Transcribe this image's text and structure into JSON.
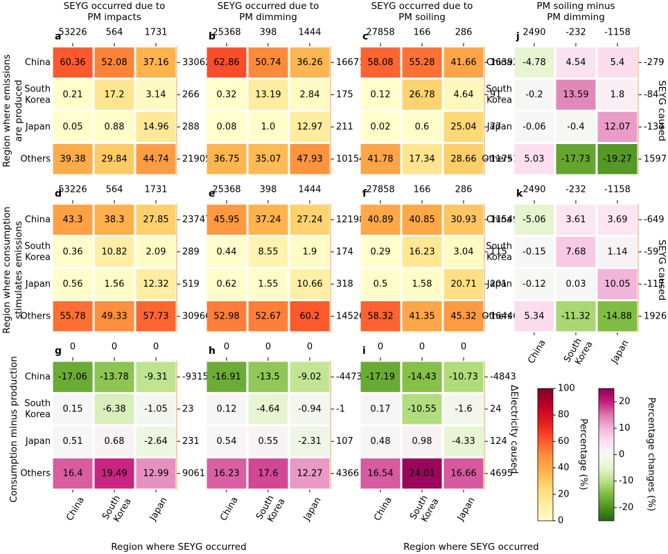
{
  "panel_titles": {
    "a": "SEYG occurred due to PM impacts",
    "b": "SEYG occurred due to PM dimming",
    "c": "SEYG occurred due to PM soiling",
    "j": "PM soiling minus PM dimming"
  },
  "row_labels": {
    "top": "Region where emissions are produced",
    "middle": "Region where consumption stimulates emissions",
    "bottom": "Consumption minus production"
  },
  "right_labels": {
    "top": "SEYG caused",
    "middle": "SEYG caused",
    "bottom": "ΔElectricity caused"
  },
  "x_axis_title": "Region where SEYG occurred",
  "colorbar_percent": {
    "label": "Percentage (%)",
    "ticks": [
      0,
      20,
      40,
      60,
      80,
      100
    ]
  },
  "colorbar_change": {
    "label": "Percentage changes (%)",
    "ticks": [
      -20,
      -10,
      0,
      10,
      20
    ]
  },
  "chart_data": {
    "type": "heatmap",
    "x_categories": [
      "China",
      "South Korea",
      "Japan"
    ],
    "y_categories": [
      "China",
      "South Korea",
      "Japan",
      "Others"
    ],
    "panels": [
      {
        "id": "a",
        "row": 0,
        "col": 0,
        "scale": "percent",
        "col_totals": [
          "53226",
          "564",
          "1731"
        ],
        "row_totals": [
          "33062",
          "266",
          "288",
          "21905"
        ],
        "values": [
          [
            60.36,
            52.08,
            37.16
          ],
          [
            0.21,
            17.2,
            3.14
          ],
          [
            0.05,
            0.88,
            14.96
          ],
          [
            39.38,
            29.84,
            44.74
          ]
        ]
      },
      {
        "id": "b",
        "row": 0,
        "col": 1,
        "scale": "percent",
        "col_totals": [
          "25368",
          "398",
          "1444"
        ],
        "row_totals": [
          "16671",
          "175",
          "211",
          "10154"
        ],
        "values": [
          [
            62.86,
            50.74,
            36.26
          ],
          [
            0.32,
            13.19,
            2.84
          ],
          [
            0.08,
            "1.0",
            12.97
          ],
          [
            36.75,
            35.07,
            47.93
          ]
        ]
      },
      {
        "id": "c",
        "row": 0,
        "col": 2,
        "scale": "percent",
        "col_totals": [
          "27858",
          "166",
          "286"
        ],
        "row_totals": [
          "16392",
          "91",
          "77",
          "11751"
        ],
        "values": [
          [
            58.08,
            55.28,
            41.66
          ],
          [
            0.12,
            26.78,
            4.64
          ],
          [
            0.02,
            0.6,
            25.04
          ],
          [
            41.78,
            17.34,
            28.66
          ]
        ]
      },
      {
        "id": "j",
        "row": 0,
        "col": 3,
        "scale": "change",
        "col_totals": [
          "2490",
          "-232",
          "-1158"
        ],
        "row_totals": [
          "-279",
          "-84",
          "-134",
          "1597"
        ],
        "values": [
          [
            -4.78,
            4.54,
            5.4
          ],
          [
            -0.2,
            13.59,
            1.8
          ],
          [
            -0.06,
            -0.4,
            12.07
          ],
          [
            5.03,
            -17.73,
            -19.27
          ]
        ]
      },
      {
        "id": "d",
        "row": 1,
        "col": 0,
        "scale": "percent",
        "col_totals": [
          "53226",
          "564",
          "1731"
        ],
        "row_totals": [
          "23747",
          "289",
          "519",
          "30966"
        ],
        "values": [
          [
            43.3,
            38.3,
            27.85
          ],
          [
            0.36,
            10.82,
            2.09
          ],
          [
            0.56,
            1.56,
            12.32
          ],
          [
            55.78,
            49.33,
            57.73
          ]
        ]
      },
      {
        "id": "e",
        "row": 1,
        "col": 1,
        "scale": "percent",
        "col_totals": [
          "25368",
          "398",
          "1444"
        ],
        "row_totals": [
          "12198",
          "174",
          "318",
          "14520"
        ],
        "values": [
          [
            45.95,
            37.24,
            27.24
          ],
          [
            0.44,
            8.55,
            1.9
          ],
          [
            0.62,
            1.55,
            10.66
          ],
          [
            52.98,
            52.67,
            60.2
          ]
        ]
      },
      {
        "id": "f",
        "row": 1,
        "col": 2,
        "scale": "percent",
        "col_totals": [
          "27858",
          "166",
          "286"
        ],
        "row_totals": [
          "11549",
          "115",
          "201",
          "16446"
        ],
        "values": [
          [
            40.89,
            40.85,
            30.93
          ],
          [
            0.29,
            16.23,
            3.04
          ],
          [
            0.5,
            1.58,
            20.71
          ],
          [
            58.32,
            41.35,
            45.32
          ]
        ]
      },
      {
        "id": "k",
        "row": 1,
        "col": 3,
        "scale": "change",
        "col_totals": [
          "2490",
          "-232",
          "-1158"
        ],
        "row_totals": [
          "-649",
          "-59",
          "-117",
          "1926"
        ],
        "values": [
          [
            -5.06,
            3.61,
            3.69
          ],
          [
            -0.15,
            7.68,
            1.14
          ],
          [
            -0.12,
            0.03,
            10.05
          ],
          [
            5.34,
            -11.32,
            -14.88
          ]
        ]
      },
      {
        "id": "g",
        "row": 2,
        "col": 0,
        "scale": "change",
        "col_totals": [
          "0",
          "0",
          "0"
        ],
        "row_totals": [
          "-9315",
          "23",
          "231",
          "9061"
        ],
        "values": [
          [
            -17.06,
            -13.78,
            -9.31
          ],
          [
            0.15,
            -6.38,
            -1.05
          ],
          [
            0.51,
            0.68,
            -2.64
          ],
          [
            16.4,
            19.49,
            12.99
          ]
        ]
      },
      {
        "id": "h",
        "row": 2,
        "col": 1,
        "scale": "change",
        "col_totals": [
          "0",
          "0",
          "0"
        ],
        "row_totals": [
          "-4473",
          "-1",
          "107",
          "4366"
        ],
        "values": [
          [
            -16.91,
            -13.5,
            -9.02
          ],
          [
            0.12,
            -4.64,
            -0.94
          ],
          [
            0.54,
            0.55,
            -2.31
          ],
          [
            16.23,
            17.6,
            12.27
          ]
        ]
      },
      {
        "id": "i",
        "row": 2,
        "col": 2,
        "scale": "change",
        "col_totals": [
          "0",
          "0",
          "0"
        ],
        "row_totals": [
          "-4843",
          "24",
          "124",
          "4695"
        ],
        "values": [
          [
            -17.19,
            -14.43,
            -10.73
          ],
          [
            0.17,
            -10.55,
            -1.6
          ],
          [
            0.48,
            0.98,
            -4.33
          ],
          [
            16.54,
            24.01,
            16.66
          ]
        ]
      }
    ]
  }
}
